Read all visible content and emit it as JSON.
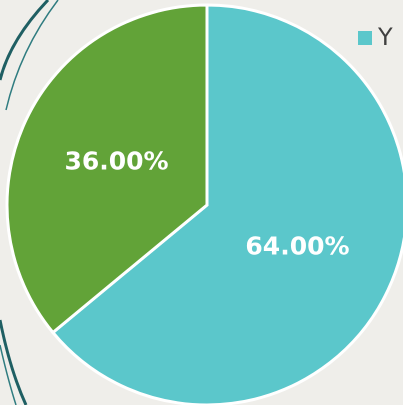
{
  "chart_data": {
    "type": "pie",
    "categories": [
      "Y",
      null
    ],
    "values": [
      64,
      36
    ],
    "value_labels": [
      "64.00%",
      "36.00%"
    ],
    "colors": [
      "#5bc7cb",
      "#62a338"
    ],
    "legend": "top-right"
  }
}
